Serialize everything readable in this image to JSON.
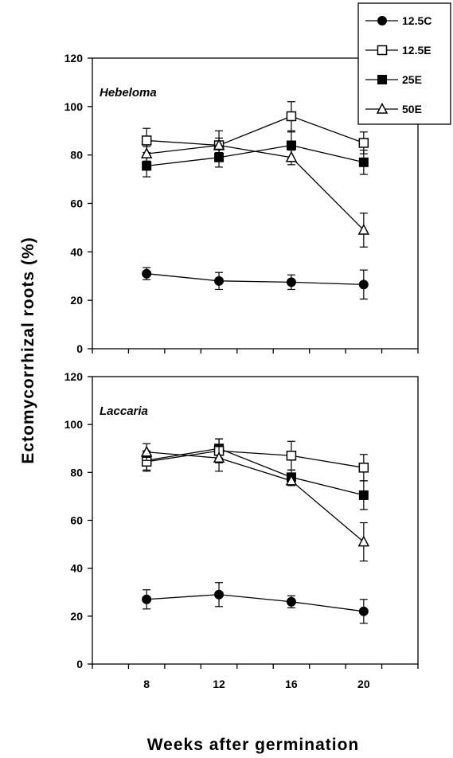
{
  "chart_data": {
    "type": "line",
    "xlabel": "Weeks after germination",
    "ylabel": "Ectomycorrhizal roots (%)",
    "x": [
      8,
      12,
      16,
      20
    ],
    "xlim": [
      5,
      23
    ],
    "ylim": [
      0,
      120
    ],
    "yticks": [
      0,
      20,
      40,
      60,
      80,
      100,
      120
    ],
    "grid": false,
    "legend_position": "top-right",
    "legend": [
      {
        "name": "12.5C",
        "marker": "filled-circle"
      },
      {
        "name": "12.5E",
        "marker": "open-square"
      },
      {
        "name": "25E",
        "marker": "filled-square"
      },
      {
        "name": "50E",
        "marker": "open-triangle"
      }
    ],
    "panels": [
      {
        "label": "Hebeloma",
        "series": [
          {
            "name": "12.5C",
            "values": [
              31,
              28,
              27.5,
              26.5
            ],
            "errors": [
              2.5,
              3.5,
              3,
              6
            ]
          },
          {
            "name": "12.5E",
            "values": [
              86,
              84,
              96,
              85
            ],
            "errors": [
              5,
              6,
              6,
              4.5
            ]
          },
          {
            "name": "25E",
            "values": [
              75.5,
              79,
              84,
              77
            ],
            "errors": [
              4.5,
              4,
              5.5,
              5
            ]
          },
          {
            "name": "50E",
            "values": [
              80.5,
              84,
              79,
              49
            ],
            "errors": [
              3,
              3,
              3,
              7
            ]
          }
        ]
      },
      {
        "label": "Laccaria",
        "series": [
          {
            "name": "12.5C",
            "values": [
              27,
              29,
              26,
              22
            ],
            "errors": [
              4,
              5,
              2.5,
              5
            ]
          },
          {
            "name": "12.5E",
            "values": [
              84.5,
              89,
              87,
              82
            ],
            "errors": [
              4,
              5,
              6,
              5.5
            ]
          },
          {
            "name": "25E",
            "values": [
              85,
              90,
              78,
              70.5
            ],
            "errors": [
              4,
              4,
              3,
              6
            ]
          },
          {
            "name": "50E",
            "values": [
              88.5,
              86,
              76.5,
              51
            ],
            "errors": [
              3.5,
              5.5,
              2,
              8
            ]
          }
        ]
      }
    ]
  }
}
